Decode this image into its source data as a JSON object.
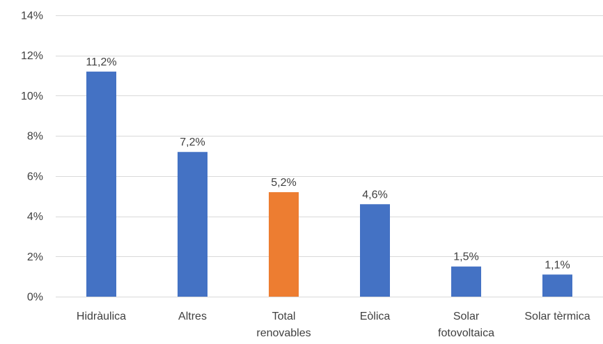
{
  "chart_data": {
    "type": "bar",
    "title": "",
    "xlabel": "",
    "ylabel": "",
    "categories": [
      [
        "Hidràulica"
      ],
      [
        "Altres"
      ],
      [
        "Total",
        "renovables"
      ],
      [
        "Eòlica"
      ],
      [
        "Solar",
        "fotovoltaica"
      ],
      [
        "Solar tèrmica"
      ]
    ],
    "values": [
      11.2,
      7.2,
      5.2,
      4.6,
      1.5,
      1.1
    ],
    "data_labels": [
      "11,2%",
      "7,2%",
      "5,2%",
      "4,6%",
      "1,5%",
      "1,1%"
    ],
    "bar_colors": [
      "#4472C4",
      "#4472C4",
      "#ED7D31",
      "#4472C4",
      "#4472C4",
      "#4472C4"
    ],
    "y_ticks": [
      0,
      2,
      4,
      6,
      8,
      10,
      12,
      14
    ],
    "y_tick_labels": [
      "0%",
      "2%",
      "4%",
      "6%",
      "8%",
      "10%",
      "12%",
      "14%"
    ],
    "ylim": [
      0,
      14
    ],
    "grid": true,
    "legend": "none",
    "colors": {
      "bar_default": "#4472C4",
      "bar_highlight": "#ED7D31",
      "grid": "#D9D9D9",
      "text": "#404040"
    }
  }
}
